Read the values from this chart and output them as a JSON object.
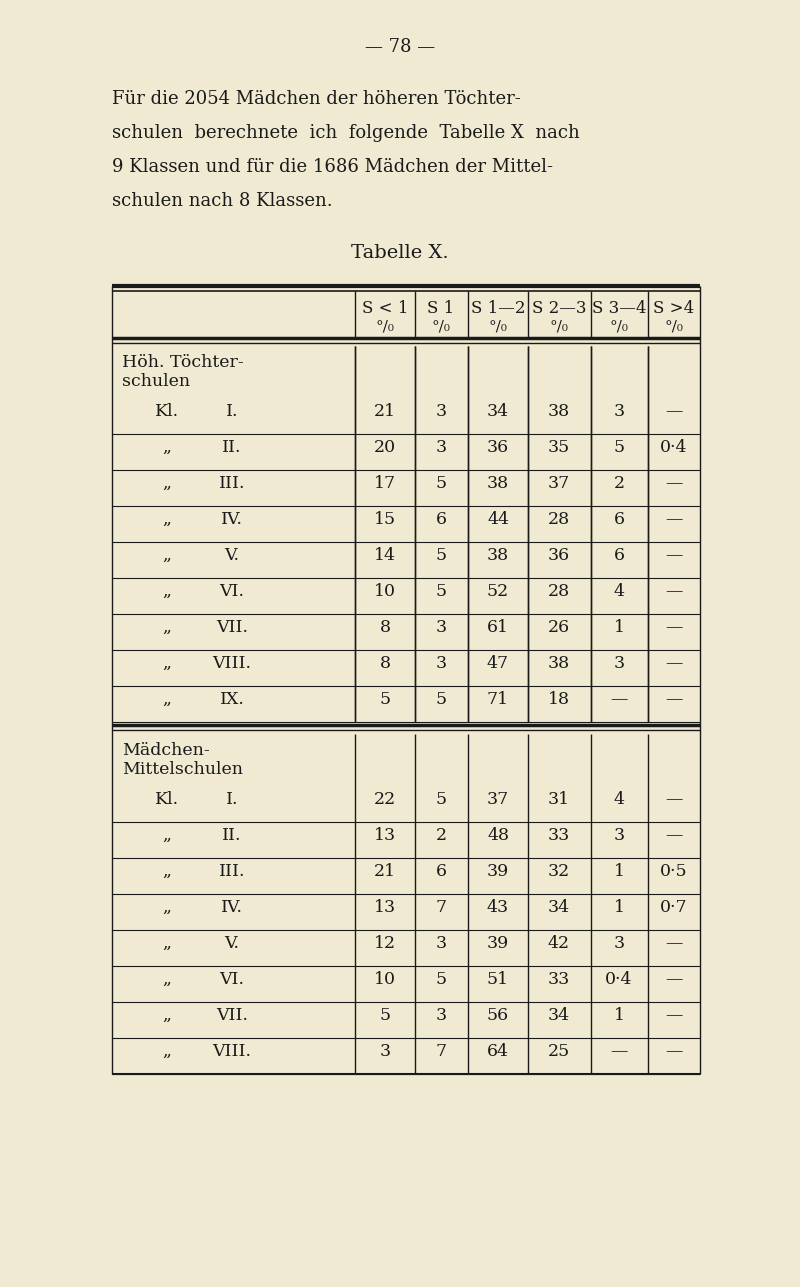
{
  "bg_color": "#f0ead2",
  "page_number": "— 78 —",
  "intro_lines": [
    "Für die 2054 Mädchen der höheren Töchter-",
    "schulen  berechnete  ich  folgende  Tabelle X  nach",
    "9 Klassen und für die 1686 Mädchen der Mittel-",
    "schulen nach 8 Klassen."
  ],
  "table_title": "Tabelle X.",
  "col_headers_line1": [
    "S < 1",
    "S 1",
    "S 1—2",
    "S 2—3",
    "S 3—4",
    "S >4"
  ],
  "col_headers_line2": [
    "°/₀",
    "°/₀",
    "°/₀",
    "°/₀",
    "°/₀",
    "°/₀"
  ],
  "sec1_title": [
    "Höh. Töchter-",
    "schulen"
  ],
  "sec1_rows": [
    [
      "Kl.",
      "I.",
      "21",
      "3",
      "34",
      "38",
      "3",
      "—"
    ],
    [
      "„",
      "II.",
      "20",
      "3",
      "36",
      "35",
      "5",
      "0·4"
    ],
    [
      "„",
      "III.",
      "17",
      "5",
      "38",
      "37",
      "2",
      "—"
    ],
    [
      "„",
      "IV.",
      "15",
      "6",
      "44",
      "28",
      "6",
      "—"
    ],
    [
      "„",
      "V.",
      "14",
      "5",
      "38",
      "36",
      "6",
      "—"
    ],
    [
      "„",
      "VI.",
      "10",
      "5",
      "52",
      "28",
      "4",
      "—"
    ],
    [
      "„",
      "VII.",
      "8",
      "3",
      "61",
      "26",
      "1",
      "—"
    ],
    [
      "„",
      "VIII.",
      "8",
      "3",
      "47",
      "38",
      "3",
      "—"
    ],
    [
      "„",
      "IX.",
      "5",
      "5",
      "71",
      "18",
      "—",
      "—"
    ]
  ],
  "sec2_title": [
    "Mädchen-",
    "Mittelschulen"
  ],
  "sec2_rows": [
    [
      "Kl.",
      "I.",
      "22",
      "5",
      "37",
      "31",
      "4",
      "—"
    ],
    [
      "„",
      "II.",
      "13",
      "2",
      "48",
      "33",
      "3",
      "—"
    ],
    [
      "„",
      "III.",
      "21",
      "6",
      "39",
      "32",
      "1",
      "0·5"
    ],
    [
      "„",
      "IV.",
      "13",
      "7",
      "43",
      "34",
      "1",
      "0·7"
    ],
    [
      "„",
      "V.",
      "12",
      "3",
      "39",
      "42",
      "3",
      "—"
    ],
    [
      "„",
      "VI.",
      "10",
      "5",
      "51",
      "33",
      "0·4",
      "—"
    ],
    [
      "„",
      "VII.",
      "5",
      "3",
      "56",
      "34",
      "1",
      "—"
    ],
    [
      "„",
      "VIII.",
      "3",
      "7",
      "64",
      "25",
      "—",
      "—"
    ]
  ]
}
